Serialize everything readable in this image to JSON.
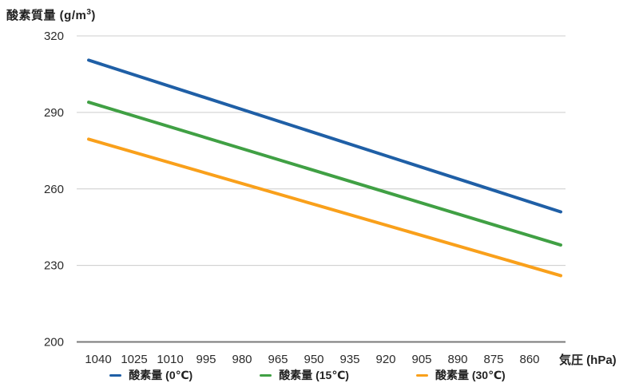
{
  "chart_data": {
    "type": "line",
    "title": "",
    "y_axis": {
      "title_prefix": "酸素質量 (g/m",
      "title_sup": "3",
      "title_suffix": ")",
      "ticks": [
        320,
        290,
        260,
        230,
        200
      ],
      "range": [
        200,
        320
      ]
    },
    "x_axis": {
      "title": "気圧 (hPa)",
      "ticks": [
        1040,
        1025,
        1010,
        995,
        980,
        965,
        950,
        935,
        920,
        905,
        890,
        875,
        860
      ],
      "direction": "descending",
      "tick_step": 15
    },
    "series": [
      {
        "name": "酸素量 (0℃)",
        "color": "#1f5fa6",
        "points": [
          {
            "x": 1044,
            "y": 310.5
          },
          {
            "x": 847,
            "y": 251
          }
        ]
      },
      {
        "name": "酸素量 (15℃)",
        "color": "#40a044",
        "points": [
          {
            "x": 1044,
            "y": 294
          },
          {
            "x": 847,
            "y": 238
          }
        ]
      },
      {
        "name": "酸素量 (30℃)",
        "color": "#f9a01b",
        "points": [
          {
            "x": 1044,
            "y": 279.5
          },
          {
            "x": 847,
            "y": 226
          }
        ]
      }
    ],
    "grid": "horizontal",
    "legend_position": "bottom"
  },
  "colors": {
    "background": "#ffffff",
    "gridline": "#cccccc",
    "axis_line": "#7a7a7a",
    "tick_text": "#2b2b2b",
    "title_text": "#222222"
  }
}
